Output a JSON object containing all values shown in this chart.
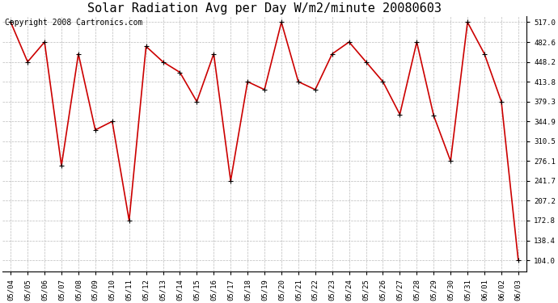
{
  "title": "Solar Radiation Avg per Day W/m2/minute 20080603",
  "copyright": "Copyright 2008 Cartronics.com",
  "dates": [
    "05/04",
    "05/05",
    "05/06",
    "05/07",
    "05/08",
    "05/09",
    "05/10",
    "05/11",
    "05/12",
    "05/13",
    "05/14",
    "05/15",
    "05/16",
    "05/17",
    "05/18",
    "05/19",
    "05/20",
    "05/21",
    "05/22",
    "05/23",
    "05/24",
    "05/25",
    "05/26",
    "05/27",
    "05/28",
    "05/29",
    "05/30",
    "05/31",
    "06/01",
    "06/02",
    "06/03"
  ],
  "values": [
    517.0,
    448.2,
    482.6,
    268.0,
    462.0,
    330.0,
    344.9,
    172.8,
    475.0,
    448.2,
    430.0,
    379.3,
    462.0,
    241.7,
    413.8,
    400.0,
    517.0,
    413.8,
    400.0,
    462.0,
    482.6,
    448.2,
    413.8,
    357.0,
    482.6,
    355.0,
    276.1,
    517.0,
    462.0,
    379.3,
    104.0
  ],
  "yticks": [
    104.0,
    138.4,
    172.8,
    207.2,
    241.7,
    276.1,
    310.5,
    344.9,
    379.3,
    413.8,
    448.2,
    482.6,
    517.0
  ],
  "line_color": "#cc0000",
  "marker": "+",
  "bg_color": "#ffffff",
  "grid_color": "#bbbbbb",
  "title_fontsize": 11,
  "copyright_fontsize": 7,
  "figwidth": 6.9,
  "figheight": 3.75,
  "dpi": 100
}
